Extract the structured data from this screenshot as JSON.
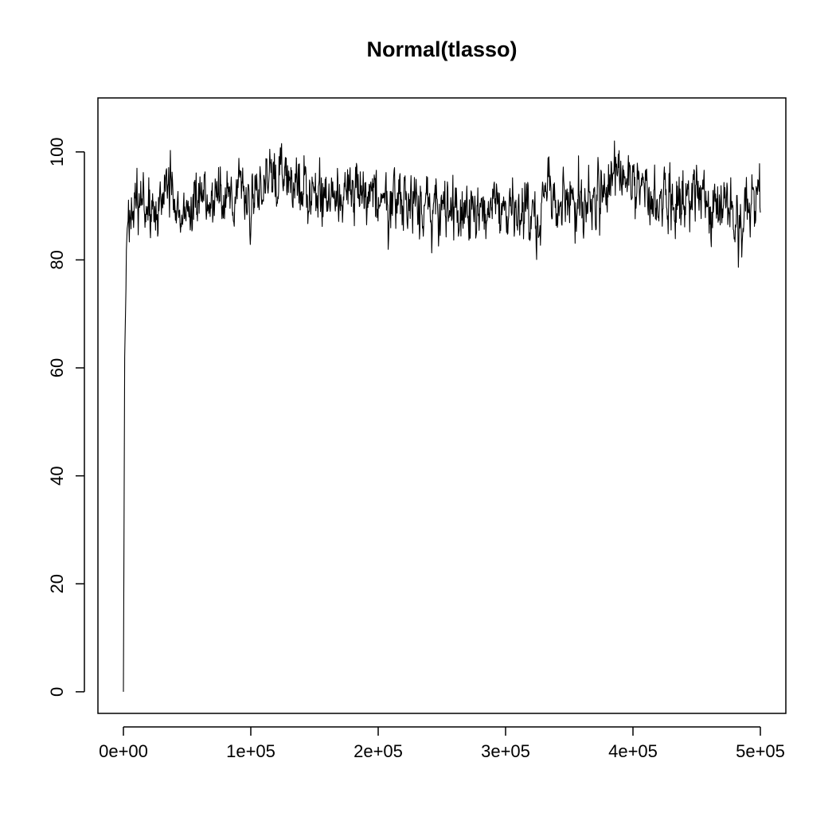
{
  "chart_data": {
    "type": "line",
    "title": "Normal(tlasso)",
    "xlabel": "",
    "ylabel": "",
    "xlim": [
      -20000,
      520000
    ],
    "ylim": [
      -4,
      110
    ],
    "x_ticks": [
      {
        "value": 0,
        "label": "0e+00"
      },
      {
        "value": 100000,
        "label": "1e+05"
      },
      {
        "value": 200000,
        "label": "2e+05"
      },
      {
        "value": 300000,
        "label": "3e+05"
      },
      {
        "value": 400000,
        "label": "4e+05"
      },
      {
        "value": 500000,
        "label": "5e+05"
      }
    ],
    "y_ticks": [
      {
        "value": 0,
        "label": "0"
      },
      {
        "value": 20,
        "label": "20"
      },
      {
        "value": 40,
        "label": "40"
      },
      {
        "value": 60,
        "label": "60"
      },
      {
        "value": 80,
        "label": "80"
      },
      {
        "value": 100,
        "label": "100"
      }
    ],
    "grid": false,
    "series": [
      {
        "color": "#000000",
        "x": [
          0,
          1000,
          2000,
          3000,
          5000,
          8000,
          12000,
          20000,
          25000,
          30000,
          37000,
          40000,
          50000,
          60000,
          70000,
          80000,
          90000,
          100000,
          110000,
          120000,
          125000,
          130000,
          140000,
          150000,
          160000,
          170000,
          180000,
          190000,
          200000,
          210000,
          220000,
          230000,
          240000,
          250000,
          260000,
          270000,
          280000,
          290000,
          300000,
          310000,
          320000,
          330000,
          340000,
          350000,
          360000,
          370000,
          380000,
          385000,
          390000,
          395000,
          400000,
          410000,
          420000,
          430000,
          440000,
          450000,
          460000,
          470000,
          478000,
          480000,
          485000,
          490000,
          495000,
          500000
        ],
        "y": [
          0,
          62,
          80,
          84,
          88,
          89,
          90,
          89,
          88,
          90,
          95,
          89,
          89,
          91,
          91,
          91,
          93,
          91,
          93,
          96,
          95,
          94,
          93,
          93,
          93,
          93,
          92,
          91,
          91,
          91,
          91,
          90,
          89,
          88,
          89,
          89,
          89,
          90,
          89,
          88,
          89,
          90,
          91,
          91,
          91,
          91,
          93,
          95,
          96,
          95,
          94,
          93,
          92,
          92,
          91,
          90,
          90,
          90,
          89,
          82,
          87,
          90,
          92,
          93
        ]
      }
    ]
  }
}
